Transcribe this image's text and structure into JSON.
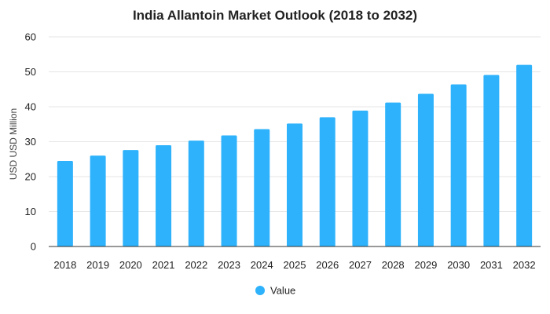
{
  "chart_data": {
    "type": "bar",
    "title": "India Allantoin Market Outlook (2018 to 2032)",
    "xlabel": "",
    "ylabel": "USD USD Million",
    "categories": [
      "2018",
      "2019",
      "2020",
      "2021",
      "2022",
      "2023",
      "2024",
      "2025",
      "2026",
      "2027",
      "2028",
      "2029",
      "2030",
      "2031",
      "2032"
    ],
    "series": [
      {
        "name": "Value",
        "values": [
          24.5,
          26.0,
          27.6,
          29.0,
          30.3,
          31.8,
          33.6,
          35.2,
          37.0,
          38.9,
          41.2,
          43.7,
          46.4,
          49.1,
          52.0
        ]
      }
    ],
    "ylim": [
      0,
      60
    ],
    "yticks": [
      0,
      10,
      20,
      30,
      40,
      50,
      60
    ],
    "grid": true,
    "legend_position": "bottom",
    "colors": {
      "bar": "#2eb2fb",
      "grid": "#e6e6e6",
      "text": "#222222"
    }
  }
}
